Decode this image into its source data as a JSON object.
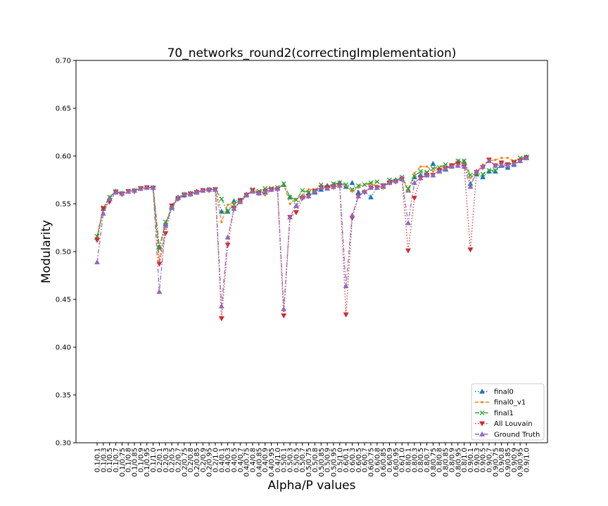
{
  "chart_data": {
    "type": "line",
    "title": "70_networks_round2(correctingImplementation)",
    "xlabel": "Alpha/P values",
    "ylabel": "Modularity",
    "ylim": [
      0.3,
      0.7
    ],
    "yticks": [
      "0.30",
      "0.35",
      "0.40",
      "0.45",
      "0.50",
      "0.55",
      "0.60",
      "0.65",
      "0.70"
    ],
    "grid": false,
    "legend_position": "lower-right",
    "categories": [
      "0.1/0.1",
      "0.1/0.3",
      "0.1/0.5",
      "0.1/0.7",
      "0.1/0.75",
      "0.1/0.8",
      "0.1/0.85",
      "0.1/0.9",
      "0.1/0.95",
      "0.1/1.0",
      "0.2/0.1",
      "0.2/0.3",
      "0.2/0.5",
      "0.2/0.7",
      "0.2/0.75",
      "0.2/0.8",
      "0.2/0.85",
      "0.2/0.9",
      "0.2/0.95",
      "0.2/1.0",
      "0.4/0.1",
      "0.4/0.3",
      "0.4/0.5",
      "0.4/0.7",
      "0.4/0.75",
      "0.4/0.8",
      "0.4/0.85",
      "0.4/0.9",
      "0.4/0.95",
      "0.4/1.0",
      "0.5/0.1",
      "0.5/0.3",
      "0.5/0.5",
      "0.5/0.7",
      "0.5/0.75",
      "0.5/0.8",
      "0.5/0.85",
      "0.5/0.9",
      "0.5/0.95",
      "0.5/1.0",
      "0.6/0.1",
      "0.6/0.3",
      "0.6/0.5",
      "0.6/0.7",
      "0.6/0.75",
      "0.6/0.8",
      "0.6/0.85",
      "0.6/0.9",
      "0.6/0.95",
      "0.6/1.0",
      "0.8/0.1",
      "0.8/0.3",
      "0.8/0.5",
      "0.8/0.7",
      "0.8/0.75",
      "0.8/0.8",
      "0.8/0.85",
      "0.8/0.9",
      "0.8/0.95",
      "0.8/1.0",
      "0.9/0.1",
      "0.9/0.3",
      "0.9/0.5",
      "0.9/0.7",
      "0.9/0.75",
      "0.9/0.8",
      "0.9/0.85",
      "0.9/0.9",
      "0.9/0.95",
      "0.9/1.0"
    ],
    "series": [
      {
        "name": "final0",
        "color": "#1f77b4",
        "linestyle": "dotted",
        "marker": "triangle-up",
        "values": [
          0.515,
          0.545,
          0.556,
          0.563,
          0.561,
          0.563,
          0.564,
          0.566,
          0.567,
          0.567,
          0.505,
          0.529,
          0.547,
          0.557,
          0.559,
          0.561,
          0.563,
          0.564,
          0.565,
          0.565,
          0.542,
          0.542,
          0.553,
          0.554,
          0.56,
          0.563,
          0.562,
          0.562,
          0.565,
          0.566,
          0.57,
          0.557,
          0.548,
          0.558,
          0.561,
          0.562,
          0.565,
          0.569,
          0.57,
          0.572,
          0.568,
          0.572,
          0.562,
          0.563,
          0.557,
          0.567,
          0.568,
          0.573,
          0.575,
          0.576,
          0.564,
          0.578,
          0.58,
          0.581,
          0.592,
          0.585,
          0.586,
          0.59,
          0.594,
          0.594,
          0.571,
          0.581,
          0.578,
          0.584,
          0.584,
          0.59,
          0.588,
          0.591,
          0.595,
          0.599
        ]
      },
      {
        "name": "final0_v1",
        "color": "#ff7f0e",
        "linestyle": "dashed",
        "marker": "point",
        "values": [
          0.514,
          0.546,
          0.556,
          0.563,
          0.561,
          0.563,
          0.564,
          0.566,
          0.567,
          0.567,
          0.49,
          0.527,
          0.548,
          0.557,
          0.56,
          0.561,
          0.562,
          0.564,
          0.565,
          0.565,
          0.531,
          0.549,
          0.551,
          0.551,
          0.559,
          0.564,
          0.56,
          0.559,
          0.565,
          0.566,
          0.57,
          0.55,
          0.555,
          0.559,
          0.565,
          0.565,
          0.567,
          0.567,
          0.566,
          0.571,
          0.569,
          0.563,
          0.567,
          0.57,
          0.571,
          0.569,
          0.566,
          0.574,
          0.574,
          0.577,
          0.563,
          0.582,
          0.589,
          0.589,
          0.584,
          0.587,
          0.588,
          0.59,
          0.591,
          0.594,
          0.577,
          0.583,
          0.591,
          0.595,
          0.596,
          0.598,
          0.598,
          0.595,
          0.597,
          0.598
        ]
      },
      {
        "name": "final1",
        "color": "#2ca02c",
        "linestyle": "dashdot",
        "marker": "x",
        "values": [
          0.516,
          0.546,
          0.557,
          0.563,
          0.561,
          0.563,
          0.564,
          0.566,
          0.567,
          0.567,
          0.503,
          0.531,
          0.545,
          0.556,
          0.56,
          0.561,
          0.562,
          0.564,
          0.565,
          0.565,
          0.555,
          0.542,
          0.549,
          0.554,
          0.559,
          0.565,
          0.563,
          0.566,
          0.566,
          0.567,
          0.571,
          0.557,
          0.554,
          0.564,
          0.562,
          0.564,
          0.57,
          0.567,
          0.571,
          0.572,
          0.57,
          0.565,
          0.569,
          0.57,
          0.572,
          0.573,
          0.569,
          0.575,
          0.574,
          0.578,
          0.566,
          0.579,
          0.584,
          0.583,
          0.587,
          0.588,
          0.591,
          0.59,
          0.595,
          0.595,
          0.58,
          0.581,
          0.581,
          0.585,
          0.585,
          0.591,
          0.59,
          0.594,
          0.598,
          0.599
        ]
      },
      {
        "name": "All Louvain",
        "color": "#d62728",
        "linestyle": "dotted",
        "marker": "triangle-down",
        "values": [
          0.512,
          0.545,
          0.552,
          0.562,
          0.56,
          0.563,
          0.563,
          0.566,
          0.567,
          0.566,
          0.487,
          0.519,
          0.548,
          0.555,
          0.559,
          0.56,
          0.562,
          0.564,
          0.564,
          0.565,
          0.43,
          0.507,
          0.545,
          0.553,
          0.559,
          0.564,
          0.561,
          0.563,
          0.565,
          0.565,
          0.433,
          0.536,
          0.541,
          0.556,
          0.558,
          0.563,
          0.567,
          0.567,
          0.568,
          0.569,
          0.434,
          0.535,
          0.558,
          0.562,
          0.567,
          0.567,
          0.569,
          0.572,
          0.573,
          0.576,
          0.501,
          0.556,
          0.577,
          0.58,
          0.58,
          0.585,
          0.587,
          0.59,
          0.592,
          0.589,
          0.502,
          0.583,
          0.588,
          0.596,
          0.59,
          0.593,
          0.591,
          0.593,
          0.595,
          0.598
        ]
      },
      {
        "name": "Ground Truth",
        "color": "#9467bd",
        "linestyle": "dashdot",
        "marker": "triangle-up",
        "values": [
          0.489,
          0.54,
          0.555,
          0.562,
          0.561,
          0.563,
          0.564,
          0.566,
          0.567,
          0.567,
          0.458,
          0.527,
          0.546,
          0.556,
          0.56,
          0.56,
          0.562,
          0.564,
          0.565,
          0.565,
          0.443,
          0.515,
          0.545,
          0.552,
          0.559,
          0.563,
          0.561,
          0.563,
          0.565,
          0.566,
          0.44,
          0.536,
          0.548,
          0.557,
          0.558,
          0.563,
          0.567,
          0.566,
          0.568,
          0.569,
          0.464,
          0.538,
          0.558,
          0.563,
          0.567,
          0.567,
          0.569,
          0.572,
          0.574,
          0.576,
          0.53,
          0.572,
          0.577,
          0.58,
          0.58,
          0.584,
          0.587,
          0.589,
          0.59,
          0.589,
          0.568,
          0.584,
          0.589,
          0.595,
          0.59,
          0.591,
          0.59,
          0.592,
          0.595,
          0.598
        ]
      }
    ]
  }
}
